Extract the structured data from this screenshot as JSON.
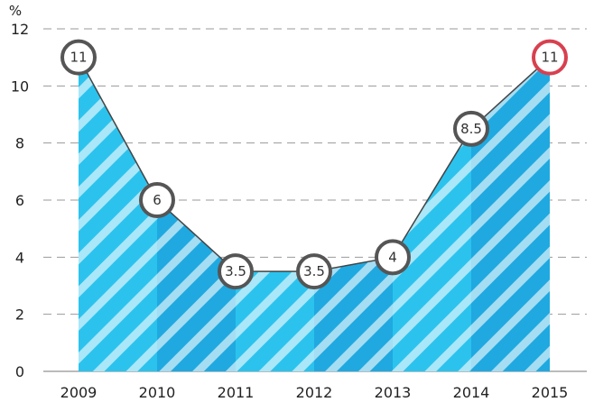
{
  "chart_data": {
    "type": "area",
    "title": "",
    "xlabel": "",
    "ylabel": "%",
    "categories": [
      "2009",
      "2010",
      "2011",
      "2012",
      "2013",
      "2014",
      "2015"
    ],
    "values": [
      11,
      6,
      3.5,
      3.5,
      4,
      8.5,
      11
    ],
    "data_labels": [
      "11",
      "6",
      "3.5",
      "3.5",
      "4",
      "8.5",
      "11"
    ],
    "ylim": [
      0,
      12
    ],
    "yticks": [
      "0",
      "2",
      "4",
      "6",
      "8",
      "10",
      "12"
    ],
    "grid": "horizontal dashed",
    "colors": {
      "fill_light": "#2bc3ee",
      "fill_dark": "#1fa9e0",
      "stripe": "#ffffff",
      "line": "#444444",
      "marker_stroke": "#555555",
      "highlight_marker_stroke": "#d8404f",
      "grid": "#9a9a9a"
    },
    "highlight_index": 6
  }
}
